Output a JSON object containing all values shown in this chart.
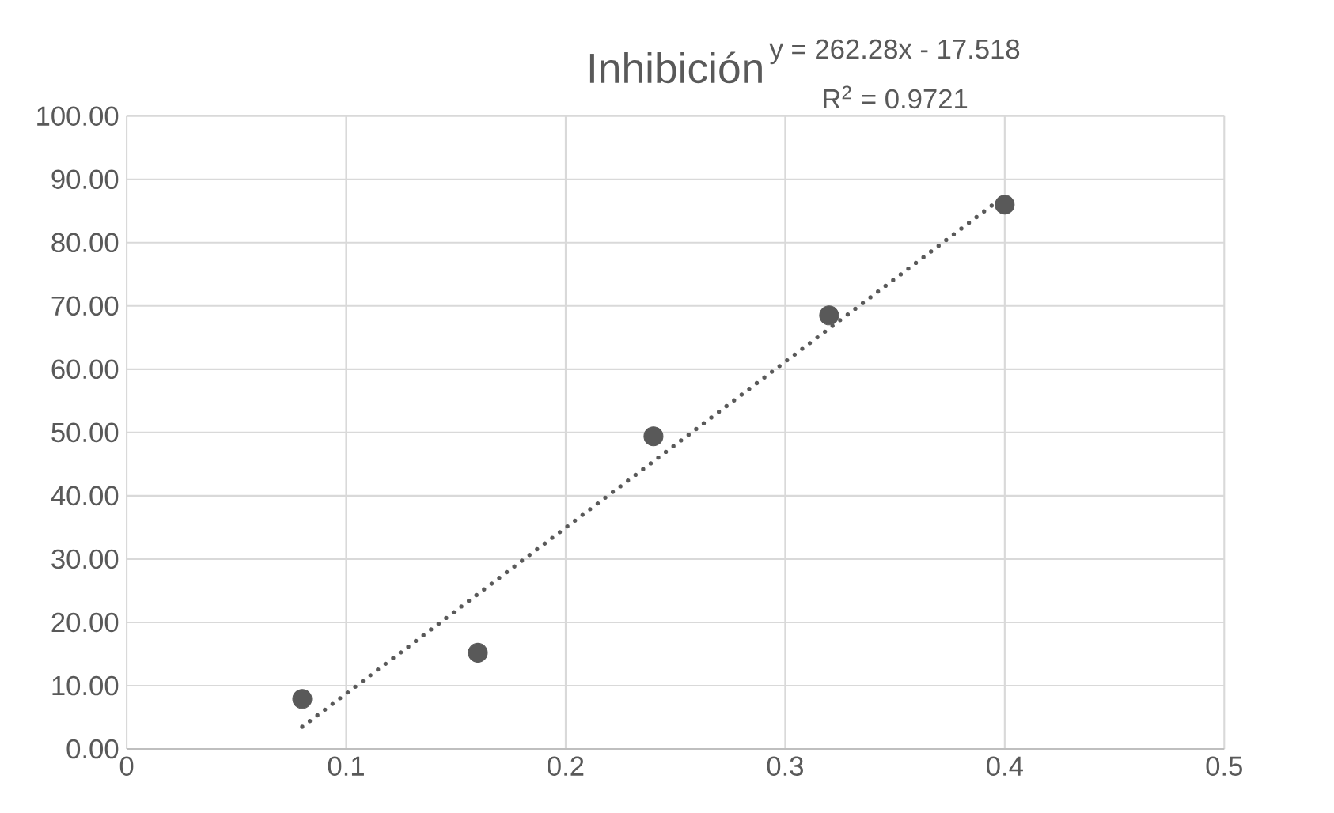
{
  "chart_data": {
    "type": "scatter",
    "title": "Inhibición",
    "annotations": [
      "y = 262.28x - 17.518",
      "R$^{2}$ = 0.9721"
    ],
    "xlim": [
      0,
      0.5
    ],
    "xticks": [
      0,
      0.1,
      0.2,
      0.3,
      0.4,
      0.5
    ],
    "ylim": [
      0,
      100
    ],
    "yticks": [
      {
        "value": 0,
        "label": "0.00"
      },
      {
        "value": 10,
        "label": "10.00"
      },
      {
        "value": 20,
        "label": "20.00"
      },
      {
        "value": 30,
        "label": "30.00"
      },
      {
        "value": 40,
        "label": "40.00"
      },
      {
        "value": 50,
        "label": "50.00"
      },
      {
        "value": 60,
        "label": "60.00"
      },
      {
        "value": 70,
        "label": "70.00"
      },
      {
        "value": 80,
        "label": "80.00"
      },
      {
        "value": 90,
        "label": "90.00"
      },
      {
        "value": 100,
        "label": "100.00"
      }
    ],
    "grid": true,
    "marker": "circle",
    "series": [
      {
        "color": "#595959",
        "x": [
          0.08,
          0.16,
          0.24,
          0.32,
          0.4
        ],
        "values": [
          7.9,
          15.2,
          49.4,
          68.5,
          86.0
        ]
      },
      {
        "type": "line",
        "color": "#595959",
        "line_style": "dotted",
        "marker": "none",
        "x": [
          0.08,
          0.4
        ],
        "values": [
          3.5,
          87.4
        ]
      }
    ]
  }
}
